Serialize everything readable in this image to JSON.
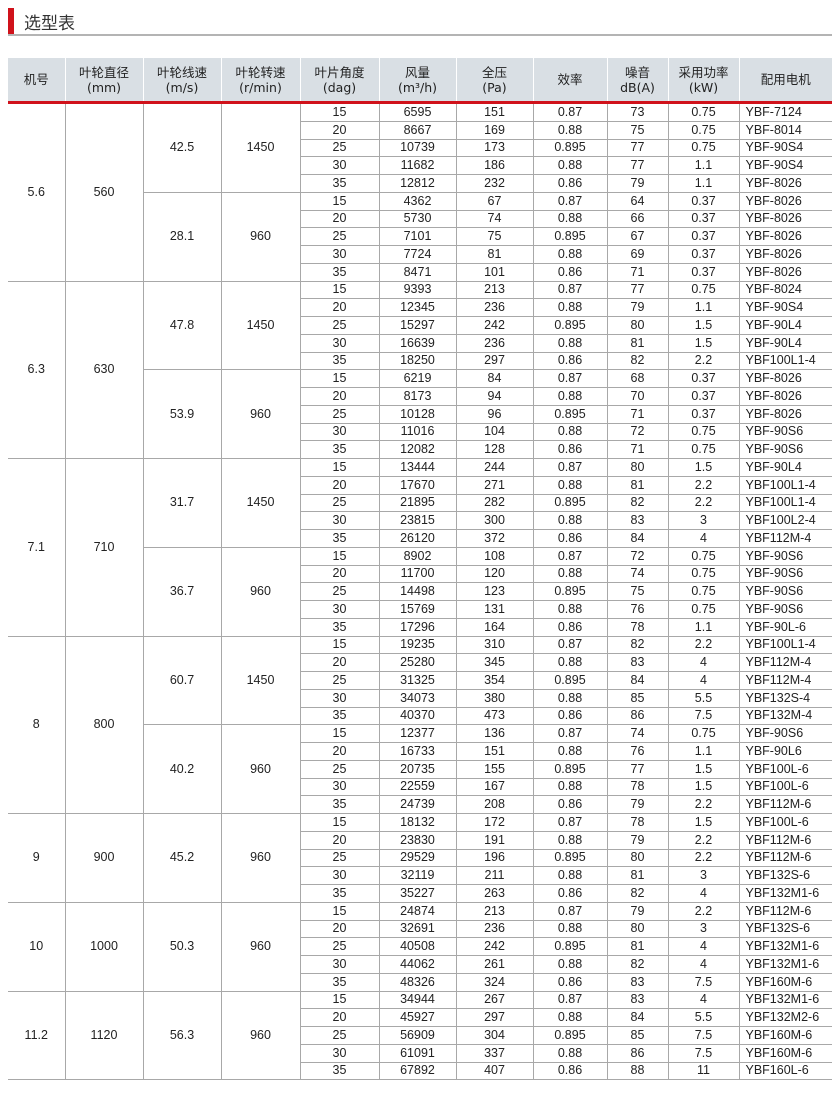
{
  "title": "选型表",
  "colors": {
    "accent": "#d0121b",
    "header_bg": "#d9dfe4"
  },
  "headers": [
    {
      "line1": "机号",
      "line2": ""
    },
    {
      "line1": "叶轮直径",
      "line2": "(mm)"
    },
    {
      "line1": "叶轮线速",
      "line2": "(m/s)"
    },
    {
      "line1": "叶轮转速",
      "line2": "(r/min)"
    },
    {
      "line1": "叶片角度",
      "line2": "(dag)"
    },
    {
      "line1": "风量",
      "line2": "(m³/h)"
    },
    {
      "line1": "全压",
      "line2": "(Pa)"
    },
    {
      "line1": "效率",
      "line2": ""
    },
    {
      "line1": "噪音",
      "line2": "dB(A)"
    },
    {
      "line1": "采用功率",
      "line2": "(kW)"
    },
    {
      "line1": "配用电机",
      "line2": ""
    }
  ],
  "groups": [
    {
      "machine": "5.6",
      "diameter": "560",
      "subgroups": [
        {
          "speed": "42.5",
          "rpm": "1450",
          "rows": [
            [
              "15",
              "6595",
              "151",
              "0.87",
              "73",
              "0.75",
              "YBF-7124"
            ],
            [
              "20",
              "8667",
              "169",
              "0.88",
              "75",
              "0.75",
              "YBF-8014"
            ],
            [
              "25",
              "10739",
              "173",
              "0.895",
              "77",
              "0.75",
              "YBF-90S4"
            ],
            [
              "30",
              "11682",
              "186",
              "0.88",
              "77",
              "1.1",
              "YBF-90S4"
            ],
            [
              "35",
              "12812",
              "232",
              "0.86",
              "79",
              "1.1",
              "YBF-8026"
            ]
          ]
        },
        {
          "speed": "28.1",
          "rpm": "960",
          "rows": [
            [
              "15",
              "4362",
              "67",
              "0.87",
              "64",
              "0.37",
              "YBF-8026"
            ],
            [
              "20",
              "5730",
              "74",
              "0.88",
              "66",
              "0.37",
              "YBF-8026"
            ],
            [
              "25",
              "7101",
              "75",
              "0.895",
              "67",
              "0.37",
              "YBF-8026"
            ],
            [
              "30",
              "7724",
              "81",
              "0.88",
              "69",
              "0.37",
              "YBF-8026"
            ],
            [
              "35",
              "8471",
              "101",
              "0.86",
              "71",
              "0.37",
              "YBF-8026"
            ]
          ]
        }
      ]
    },
    {
      "machine": "6.3",
      "diameter": "630",
      "subgroups": [
        {
          "speed": "47.8",
          "rpm": "1450",
          "rows": [
            [
              "15",
              "9393",
              "213",
              "0.87",
              "77",
              "0.75",
              "YBF-8024"
            ],
            [
              "20",
              "12345",
              "236",
              "0.88",
              "79",
              "1.1",
              "YBF-90S4"
            ],
            [
              "25",
              "15297",
              "242",
              "0.895",
              "80",
              "1.5",
              "YBF-90L4"
            ],
            [
              "30",
              "16639",
              "236",
              "0.88",
              "81",
              "1.5",
              "YBF-90L4"
            ],
            [
              "35",
              "18250",
              "297",
              "0.86",
              "82",
              "2.2",
              "YBF100L1-4"
            ]
          ]
        },
        {
          "speed": "53.9",
          "rpm": "960",
          "rows": [
            [
              "15",
              "6219",
              "84",
              "0.87",
              "68",
              "0.37",
              "YBF-8026"
            ],
            [
              "20",
              "8173",
              "94",
              "0.88",
              "70",
              "0.37",
              "YBF-8026"
            ],
            [
              "25",
              "10128",
              "96",
              "0.895",
              "71",
              "0.37",
              "YBF-8026"
            ],
            [
              "30",
              "11016",
              "104",
              "0.88",
              "72",
              "0.75",
              "YBF-90S6"
            ],
            [
              "35",
              "12082",
              "128",
              "0.86",
              "71",
              "0.75",
              "YBF-90S6"
            ]
          ]
        }
      ]
    },
    {
      "machine": "7.1",
      "diameter": "710",
      "subgroups": [
        {
          "speed": "31.7",
          "rpm": "1450",
          "rows": [
            [
              "15",
              "13444",
              "244",
              "0.87",
              "80",
              "1.5",
              "YBF-90L4"
            ],
            [
              "20",
              "17670",
              "271",
              "0.88",
              "81",
              "2.2",
              "YBF100L1-4"
            ],
            [
              "25",
              "21895",
              "282",
              "0.895",
              "82",
              "2.2",
              "YBF100L1-4"
            ],
            [
              "30",
              "23815",
              "300",
              "0.88",
              "83",
              "3",
              "YBF100L2-4"
            ],
            [
              "35",
              "26120",
              "372",
              "0.86",
              "84",
              "4",
              "YBF112M-4"
            ]
          ]
        },
        {
          "speed": "36.7",
          "rpm": "960",
          "rows": [
            [
              "15",
              "8902",
              "108",
              "0.87",
              "72",
              "0.75",
              "YBF-90S6"
            ],
            [
              "20",
              "11700",
              "120",
              "0.88",
              "74",
              "0.75",
              "YBF-90S6"
            ],
            [
              "25",
              "14498",
              "123",
              "0.895",
              "75",
              "0.75",
              "YBF-90S6"
            ],
            [
              "30",
              "15769",
              "131",
              "0.88",
              "76",
              "0.75",
              "YBF-90S6"
            ],
            [
              "35",
              "17296",
              "164",
              "0.86",
              "78",
              "1.1",
              "YBF-90L-6"
            ]
          ]
        }
      ]
    },
    {
      "machine": "8",
      "diameter": "800",
      "subgroups": [
        {
          "speed": "60.7",
          "rpm": "1450",
          "rows": [
            [
              "15",
              "19235",
              "310",
              "0.87",
              "82",
              "2.2",
              "YBF100L1-4"
            ],
            [
              "20",
              "25280",
              "345",
              "0.88",
              "83",
              "4",
              "YBF112M-4"
            ],
            [
              "25",
              "31325",
              "354",
              "0.895",
              "84",
              "4",
              "YBF112M-4"
            ],
            [
              "30",
              "34073",
              "380",
              "0.88",
              "85",
              "5.5",
              "YBF132S-4"
            ],
            [
              "35",
              "40370",
              "473",
              "0.86",
              "86",
              "7.5",
              "YBF132M-4"
            ]
          ]
        },
        {
          "speed": "40.2",
          "rpm": "960",
          "rows": [
            [
              "15",
              "12377",
              "136",
              "0.87",
              "74",
              "0.75",
              "YBF-90S6"
            ],
            [
              "20",
              "16733",
              "151",
              "0.88",
              "76",
              "1.1",
              "YBF-90L6"
            ],
            [
              "25",
              "20735",
              "155",
              "0.895",
              "77",
              "1.5",
              "YBF100L-6"
            ],
            [
              "30",
              "22559",
              "167",
              "0.88",
              "78",
              "1.5",
              "YBF100L-6"
            ],
            [
              "35",
              "24739",
              "208",
              "0.86",
              "79",
              "2.2",
              "YBF112M-6"
            ]
          ]
        }
      ]
    },
    {
      "machine": "9",
      "diameter": "900",
      "subgroups": [
        {
          "speed": "45.2",
          "rpm": "960",
          "rows": [
            [
              "15",
              "18132",
              "172",
              "0.87",
              "78",
              "1.5",
              "YBF100L-6"
            ],
            [
              "20",
              "23830",
              "191",
              "0.88",
              "79",
              "2.2",
              "YBF112M-6"
            ],
            [
              "25",
              "29529",
              "196",
              "0.895",
              "80",
              "2.2",
              "YBF112M-6"
            ],
            [
              "30",
              "32119",
              "211",
              "0.88",
              "81",
              "3",
              "YBF132S-6"
            ],
            [
              "35",
              "35227",
              "263",
              "0.86",
              "82",
              "4",
              "YBF132M1-6"
            ]
          ]
        }
      ]
    },
    {
      "machine": "10",
      "diameter": "1000",
      "subgroups": [
        {
          "speed": "50.3",
          "rpm": "960",
          "rows": [
            [
              "15",
              "24874",
              "213",
              "0.87",
              "79",
              "2.2",
              "YBF112M-6"
            ],
            [
              "20",
              "32691",
              "236",
              "0.88",
              "80",
              "3",
              "YBF132S-6"
            ],
            [
              "25",
              "40508",
              "242",
              "0.895",
              "81",
              "4",
              "YBF132M1-6"
            ],
            [
              "30",
              "44062",
              "261",
              "0.88",
              "82",
              "4",
              "YBF132M1-6"
            ],
            [
              "35",
              "48326",
              "324",
              "0.86",
              "83",
              "7.5",
              "YBF160M-6"
            ]
          ]
        }
      ]
    },
    {
      "machine": "11.2",
      "diameter": "1120",
      "subgroups": [
        {
          "speed": "56.3",
          "rpm": "960",
          "rows": [
            [
              "15",
              "34944",
              "267",
              "0.87",
              "83",
              "4",
              "YBF132M1-6"
            ],
            [
              "20",
              "45927",
              "297",
              "0.88",
              "84",
              "5.5",
              "YBF132M2-6"
            ],
            [
              "25",
              "56909",
              "304",
              "0.895",
              "85",
              "7.5",
              "YBF160M-6"
            ],
            [
              "30",
              "61091",
              "337",
              "0.88",
              "86",
              "7.5",
              "YBF160M-6"
            ],
            [
              "35",
              "67892",
              "407",
              "0.86",
              "88",
              "11",
              "YBF160L-6"
            ]
          ]
        }
      ]
    }
  ]
}
